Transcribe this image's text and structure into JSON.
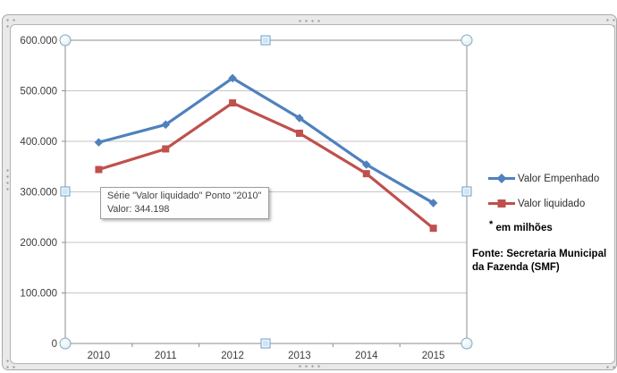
{
  "chart_data": {
    "type": "line",
    "categories": [
      "2010",
      "2011",
      "2012",
      "2013",
      "2014",
      "2015"
    ],
    "series": [
      {
        "name": "Valor Empenhado",
        "color": "#4F81BD",
        "marker": "diamond",
        "values": [
          398000,
          433000,
          525000,
          446000,
          354000,
          278000
        ]
      },
      {
        "name": "Valor liquidado",
        "color": "#C0504D",
        "marker": "square",
        "values": [
          344198,
          385000,
          476000,
          416000,
          336000,
          228000
        ]
      }
    ],
    "ylim": [
      0,
      600000
    ],
    "ytick_labels": [
      "0",
      "100.000",
      "200.000",
      "300.000",
      "400.000",
      "500.000",
      "600.000"
    ],
    "grid": true,
    "legend_position": "right"
  },
  "tooltip": {
    "line1": "Série \"Valor liquidado\" Ponto \"2010\"",
    "line2": "Valor: 344.198"
  },
  "notes": {
    "footnote_marker": "*",
    "footnote_text": " em milhões",
    "source_lines": [
      "Fonte: Secretaria Municipal",
      "da Fazenda (SMF)"
    ]
  },
  "colors": {
    "gridline": "#c6c6c6",
    "axis": "#8c8c8c",
    "axis_text": "#3c3c3c"
  }
}
